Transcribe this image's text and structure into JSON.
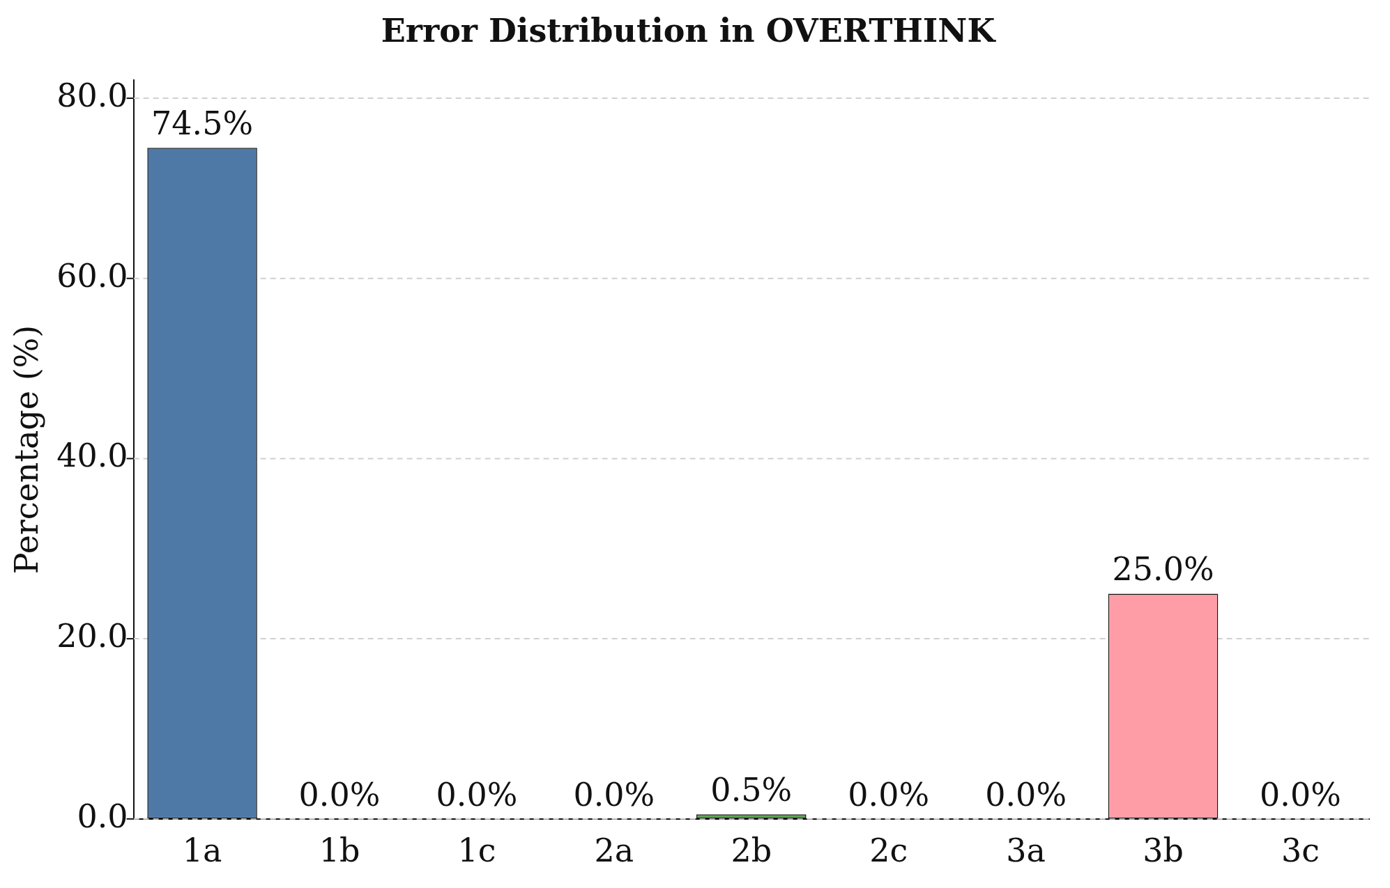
{
  "chart_data": {
    "type": "bar",
    "title": "Error Distribution in OVERTHINK",
    "ylabel": "Percentage (%)",
    "categories": [
      "1a",
      "1b",
      "1c",
      "2a",
      "2b",
      "2c",
      "3a",
      "3b",
      "3c"
    ],
    "values": [
      74.5,
      0.0,
      0.0,
      0.0,
      0.5,
      0.0,
      0.0,
      25.0,
      0.0
    ],
    "colors": [
      "#4e79a7",
      "#f28e2b",
      "#e15759",
      "#76b7b2",
      "#59a14f",
      "#edc948",
      "#b07aa1",
      "#ff9da7",
      "#9c755f"
    ],
    "value_labels": [
      "74.5%",
      "0.0%",
      "0.0%",
      "0.0%",
      "0.5%",
      "0.0%",
      "0.0%",
      "25.0%",
      "0.0%"
    ],
    "ylim": [
      0,
      82
    ],
    "yticks": [
      {
        "value": 0,
        "label": "0.0"
      },
      {
        "value": 20,
        "label": "20.0"
      },
      {
        "value": 40,
        "label": "40.0"
      },
      {
        "value": 60,
        "label": "60.0"
      },
      {
        "value": 80,
        "label": "80.0"
      }
    ],
    "grid": "y",
    "line_style": "dashed",
    "legend": false
  }
}
